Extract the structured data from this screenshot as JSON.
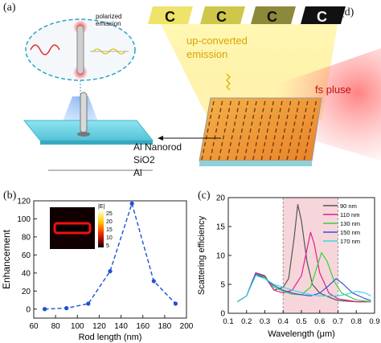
{
  "panels": {
    "a": {
      "label": "(a)",
      "inset_text_line1": "polarized",
      "inset_text_line2": "emission",
      "layers": [
        "Al Nanorod",
        "SiO2",
        "Al"
      ]
    },
    "d": {
      "label": "(d)",
      "emission_line1": "up-converted",
      "emission_line2": "emission",
      "pulse_label": "fs pluse",
      "tile_colors": [
        "#efe36a",
        "#cfc74a",
        "#8c8a3a",
        "#111111"
      ]
    },
    "b": {
      "label": "(b)",
      "colorbar_title": "|E|",
      "colorbar_ticks": [
        "25",
        "20",
        "15",
        "10",
        "5"
      ]
    },
    "c": {
      "label": "(c)"
    }
  },
  "chart_data": [
    {
      "id": "b",
      "type": "line",
      "xlabel": "Rod length (nm)",
      "ylabel": "Enhancement",
      "xlim": [
        60,
        200
      ],
      "ylim": [
        -10,
        120
      ],
      "xticks": [
        60,
        80,
        100,
        120,
        140,
        160,
        180,
        200
      ],
      "yticks": [
        0,
        20,
        40,
        60,
        80,
        100,
        120
      ],
      "series": [
        {
          "x": [
            70,
            90,
            110,
            130,
            150,
            170,
            190
          ],
          "y": [
            0,
            1,
            6,
            42,
            117,
            31,
            6
          ],
          "color": "#1f4fd6"
        }
      ]
    },
    {
      "id": "c",
      "type": "line",
      "xlabel": "Wavelength (μm)",
      "ylabel": "Scattering efficiency",
      "xlim": [
        0.1,
        0.9
      ],
      "ylim": [
        0,
        20
      ],
      "xticks": [
        0.1,
        0.2,
        0.3,
        0.4,
        0.5,
        0.6,
        0.7,
        0.8,
        0.9
      ],
      "yticks": [
        0,
        5,
        10,
        15,
        20
      ],
      "shaded_range": [
        0.4,
        0.7
      ],
      "shade_color": "#f6d6db",
      "legend": "top-right",
      "series": [
        {
          "name": "90  nm",
          "color": "#555555",
          "x": [
            0.15,
            0.2,
            0.25,
            0.3,
            0.35,
            0.4,
            0.43,
            0.46,
            0.48,
            0.5,
            0.53,
            0.56,
            0.6,
            0.65,
            0.7,
            0.8,
            0.88
          ],
          "y": [
            2,
            3,
            7,
            6.5,
            4,
            4.5,
            6,
            13,
            18.8,
            16,
            9,
            5,
            3.5,
            2.8,
            2.2,
            2,
            2
          ]
        },
        {
          "name": "110  nm",
          "color": "#e0208a",
          "x": [
            0.15,
            0.2,
            0.25,
            0.3,
            0.35,
            0.4,
            0.45,
            0.5,
            0.53,
            0.55,
            0.57,
            0.6,
            0.65,
            0.7,
            0.8,
            0.88
          ],
          "y": [
            2,
            3,
            7,
            6.3,
            4,
            3.5,
            4,
            6.5,
            11,
            14,
            12,
            7,
            3.5,
            2.5,
            2,
            2
          ]
        },
        {
          "name": "130  nm",
          "color": "#37d037",
          "x": [
            0.15,
            0.2,
            0.25,
            0.3,
            0.35,
            0.4,
            0.45,
            0.5,
            0.55,
            0.58,
            0.61,
            0.64,
            0.68,
            0.72,
            0.8,
            0.88
          ],
          "y": [
            2,
            3,
            6.8,
            6.2,
            4.5,
            3.8,
            3.3,
            3.2,
            4.5,
            7.5,
            10.5,
            9,
            5.5,
            3.5,
            2.3,
            2
          ]
        },
        {
          "name": "150  nm",
          "color": "#3a4fd8",
          "x": [
            0.15,
            0.2,
            0.25,
            0.3,
            0.35,
            0.4,
            0.45,
            0.5,
            0.55,
            0.6,
            0.65,
            0.69,
            0.73,
            0.78,
            0.85,
            0.88
          ],
          "y": [
            2,
            3,
            6.8,
            6,
            4.8,
            4,
            3.5,
            3.2,
            3,
            3.5,
            4.8,
            6,
            5,
            3.5,
            2.5,
            2.2
          ]
        },
        {
          "name": "170  nm",
          "color": "#3fd6e0",
          "x": [
            0.15,
            0.2,
            0.25,
            0.3,
            0.35,
            0.4,
            0.45,
            0.5,
            0.55,
            0.6,
            0.65,
            0.7,
            0.75,
            0.8,
            0.85,
            0.88
          ],
          "y": [
            2,
            3,
            6.5,
            6,
            5,
            4.5,
            4,
            3.6,
            3.2,
            3,
            3,
            3,
            3.3,
            3.8,
            3.5,
            3
          ]
        }
      ]
    }
  ]
}
